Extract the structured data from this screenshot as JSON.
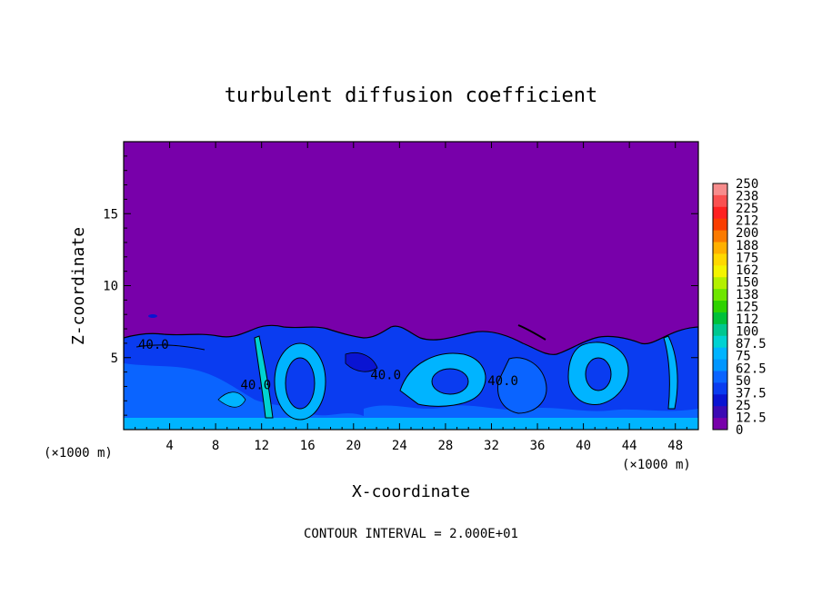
{
  "chart_data": {
    "type": "heatmap",
    "title": "turbulent diffusion coefficient",
    "xlabel": "X-coordinate",
    "ylabel": "Z-coordinate",
    "x_unit": "(×1000 m)",
    "y_unit": "(×1000 m)",
    "x_ticks": [
      "4",
      "8",
      "12",
      "16",
      "20",
      "24",
      "28",
      "32",
      "36",
      "40",
      "44",
      "48"
    ],
    "y_ticks": [
      "5",
      "10",
      "15"
    ],
    "xlim": [
      0,
      50
    ],
    "ylim": [
      0,
      20
    ],
    "footer": "CONTOUR INTERVAL = 2.000E+01",
    "contour_labels": [
      {
        "text": "40.0",
        "x": 2.6,
        "z": 5.6
      },
      {
        "text": "40.0",
        "x": 11.5,
        "z": 2.8
      },
      {
        "text": "40.0",
        "x": 22.8,
        "z": 3.5
      },
      {
        "text": "40.0",
        "x": 33.0,
        "z": 3.1
      }
    ],
    "colorbar": {
      "labels": [
        "250",
        "238",
        "225",
        "212",
        "200",
        "188",
        "175",
        "162",
        "150",
        "138",
        "125",
        "112",
        "100",
        "87.5",
        "75",
        "62.5",
        "50",
        "37.5",
        "25",
        "12.5",
        "0"
      ],
      "colors": [
        "#f78c8c",
        "#fa5050",
        "#ff2020",
        "#fa3c00",
        "#fb7a00",
        "#ffb000",
        "#ffd800",
        "#f4f400",
        "#b4f000",
        "#6ee600",
        "#2ed200",
        "#00c13a",
        "#00c78f",
        "#00d2d2",
        "#00b4ff",
        "#0096ff",
        "#0a64ff",
        "#0a3cf0",
        "#0a14d2",
        "#3c0ab4",
        "#7800aa"
      ]
    },
    "field_notes": "low-level turbulent layer 0-7 km with eddies, quiescent above"
  }
}
